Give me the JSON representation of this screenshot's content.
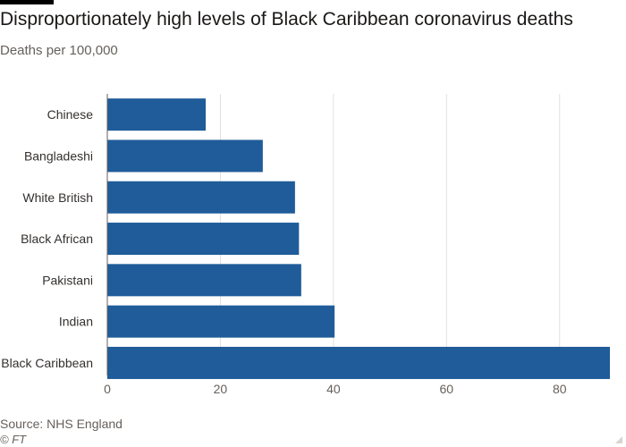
{
  "header": {
    "title": "Disproportionately high levels of Black Caribbean coronavirus deaths",
    "subtitle": "Deaths per 100,000"
  },
  "footer": {
    "source": "Source: NHS England",
    "copyright": "© FT"
  },
  "colors": {
    "bar": "#1f5c99",
    "grid": "#e3e0dc",
    "axis": "#66605c",
    "text": "#33302e"
  },
  "chart_data": {
    "type": "bar",
    "orientation": "horizontal",
    "title": "Disproportionately high levels of Black Caribbean coronavirus deaths",
    "subtitle": "Deaths per 100,000",
    "xlabel": "",
    "ylabel": "",
    "categories": [
      "Chinese",
      "Bangladeshi",
      "White British",
      "Black African",
      "Pakistani",
      "Indian",
      "Black Caribbean"
    ],
    "values": [
      17.4,
      27.5,
      33.2,
      33.9,
      34.3,
      40.2,
      88.9
    ],
    "xlim": [
      0,
      88.9
    ],
    "xticks": [
      0,
      20,
      40,
      60,
      80
    ],
    "grid": true
  }
}
